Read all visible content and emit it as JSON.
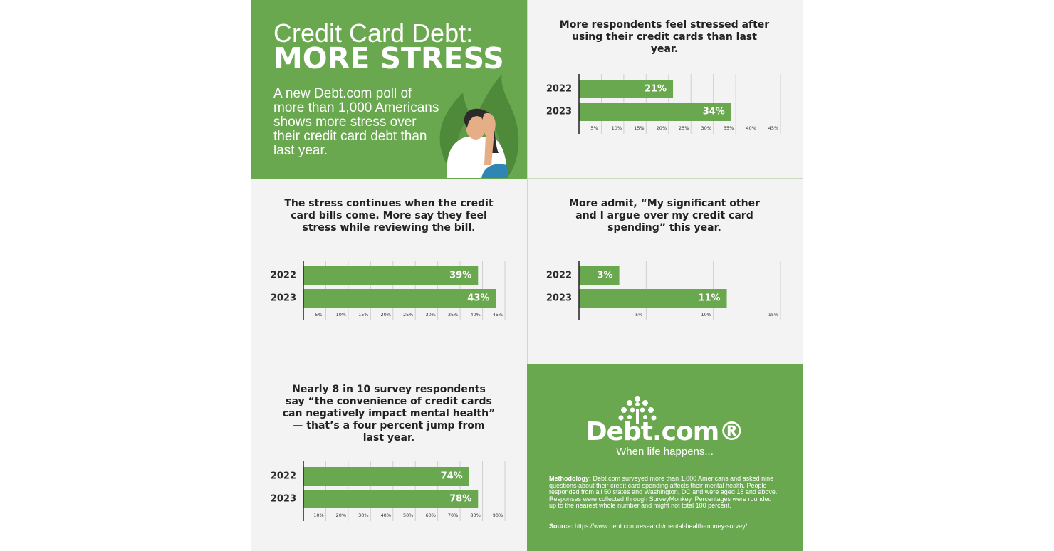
{
  "header": {
    "title_line1": "Credit Card Debt:",
    "title_line2": "MORE STRESS",
    "description": "A new Debt.com poll of more than 1,000 Americans shows more stress over their credit card debt than last year."
  },
  "chart_data": [
    {
      "type": "bar",
      "orientation": "horizontal",
      "title": "More respondents feel stressed after using their credit cards than last year.",
      "categories": [
        "2022",
        "2023"
      ],
      "values": [
        21,
        34
      ],
      "value_labels": [
        "21%",
        "34%"
      ],
      "color": "#6aa84f",
      "xlim": [
        0,
        45
      ],
      "xticks": [
        {
          "value": 5,
          "label": "5%"
        },
        {
          "value": 10,
          "label": "10%"
        },
        {
          "value": 15,
          "label": "15%"
        },
        {
          "value": 20,
          "label": "20%"
        },
        {
          "value": 25,
          "label": "25%"
        },
        {
          "value": 30,
          "label": "30%"
        },
        {
          "value": 35,
          "label": "35%"
        },
        {
          "value": 40,
          "label": "40%"
        },
        {
          "value": 45,
          "label": "45%"
        }
      ],
      "grid": true
    },
    {
      "type": "bar",
      "orientation": "horizontal",
      "title": "The stress continues when the credit card bills come. More say they feel stress while reviewing the bill.",
      "categories": [
        "2022",
        "2023"
      ],
      "values": [
        39,
        43
      ],
      "value_labels": [
        "39%",
        "43%"
      ],
      "color": "#6aa84f",
      "xlim": [
        0,
        45
      ],
      "xticks": [
        {
          "value": 5,
          "label": "5%"
        },
        {
          "value": 10,
          "label": "10%"
        },
        {
          "value": 15,
          "label": "15%"
        },
        {
          "value": 20,
          "label": "20%"
        },
        {
          "value": 25,
          "label": "25%"
        },
        {
          "value": 30,
          "label": "30%"
        },
        {
          "value": 35,
          "label": "35%"
        },
        {
          "value": 40,
          "label": "40%"
        },
        {
          "value": 45,
          "label": "45%"
        }
      ],
      "grid": true
    },
    {
      "type": "bar",
      "orientation": "horizontal",
      "title": "More admit, “My significant other and I argue over my credit card spending” this year.",
      "categories": [
        "2022",
        "2023"
      ],
      "values": [
        3,
        11
      ],
      "value_labels": [
        "3%",
        "11%"
      ],
      "color": "#6aa84f",
      "xlim": [
        0,
        15
      ],
      "xticks": [
        {
          "value": 5,
          "label": "5%"
        },
        {
          "value": 10,
          "label": "10%"
        },
        {
          "value": 15,
          "label": "15%"
        }
      ],
      "grid": true
    },
    {
      "type": "bar",
      "orientation": "horizontal",
      "title": "Nearly 8 in 10 survey respondents say “the convenience of credit cards can negatively impact mental health” — that’s a four percent jump from last year.",
      "categories": [
        "2022",
        "2023"
      ],
      "values": [
        74,
        78
      ],
      "value_labels": [
        "74%",
        "78%"
      ],
      "color": "#6aa84f",
      "xlim": [
        0,
        90
      ],
      "xticks": [
        {
          "value": 10,
          "label": "10%"
        },
        {
          "value": 20,
          "label": "20%"
        },
        {
          "value": 30,
          "label": "30%"
        },
        {
          "value": 40,
          "label": "40%"
        },
        {
          "value": 50,
          "label": "50%"
        },
        {
          "value": 60,
          "label": "60%"
        },
        {
          "value": 70,
          "label": "70%"
        },
        {
          "value": 80,
          "label": "80%"
        },
        {
          "value": 90,
          "label": "90%"
        }
      ],
      "grid": true
    }
  ],
  "footer": {
    "logo": "Debt.com®",
    "tagline": "When life happens...",
    "methodology": {
      "label": "Methodology:",
      "text": "Debt.com surveyed more than 1,000 Americans and asked nine questions about their credit card spending affects their mental health. People responded from all 50 states and Washington, DC and were aged 18 and above. Responses were collected through SurveyMonkey. Percentages were rounded up to the nearest whole number and might not total 100 percent."
    },
    "source": {
      "label": "Source:",
      "url": "https://www.debt.com/research/mental-health-money-survey/"
    }
  }
}
